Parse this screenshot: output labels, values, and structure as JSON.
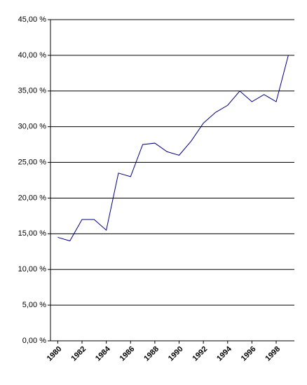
{
  "chart_data": {
    "type": "line",
    "x": [
      1980,
      1981,
      1982,
      1983,
      1984,
      1985,
      1986,
      1987,
      1988,
      1989,
      1990,
      1991,
      1992,
      1993,
      1994,
      1995,
      1996,
      1997,
      1998,
      1999
    ],
    "series": [
      {
        "color": "#000080",
        "values": [
          14.5,
          14.0,
          17.0,
          17.0,
          15.5,
          23.5,
          23.0,
          27.5,
          27.7,
          26.5,
          26.0,
          28.0,
          30.5,
          32.0,
          33.0,
          35.0,
          33.5,
          34.5,
          33.5,
          40.0
        ]
      }
    ],
    "xlim": [
      1979.4,
      1999.5
    ],
    "xticks": [
      1980,
      1982,
      1984,
      1986,
      1988,
      1990,
      1992,
      1994,
      1996,
      1998
    ],
    "ylim": [
      0,
      45
    ],
    "yticks": [
      {
        "value": 0,
        "label": "0,00 %"
      },
      {
        "value": 5,
        "label": "5,00 %"
      },
      {
        "value": 10,
        "label": "10,00 %"
      },
      {
        "value": 15,
        "label": "15,00 %"
      },
      {
        "value": 20,
        "label": "20,00 %"
      },
      {
        "value": 25,
        "label": "25,00 %"
      },
      {
        "value": 30,
        "label": "30,00 %"
      },
      {
        "value": 35,
        "label": "35,00 %"
      },
      {
        "value": 40,
        "label": "40,00 %"
      },
      {
        "value": 45,
        "label": "45,00 %"
      }
    ],
    "grid": true
  }
}
